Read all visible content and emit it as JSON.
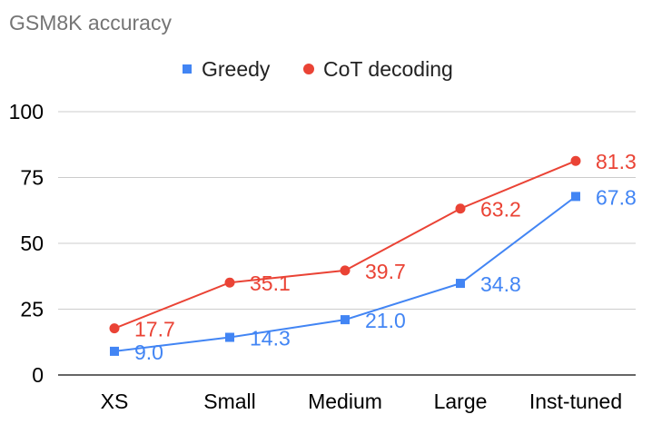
{
  "chart_data": {
    "type": "line",
    "title": "GSM8K accuracy",
    "categories": [
      "XS",
      "Small",
      "Medium",
      "Large",
      "Inst-tuned"
    ],
    "series": [
      {
        "name": "Greedy",
        "values": [
          9.0,
          14.3,
          21.0,
          34.8,
          67.8
        ],
        "color": "#4285f4",
        "marker": "square"
      },
      {
        "name": "CoT decoding",
        "values": [
          17.7,
          35.1,
          39.7,
          63.2,
          81.3
        ],
        "color": "#ea4335",
        "marker": "circle"
      }
    ],
    "yticks": [
      "0",
      "25",
      "50",
      "75",
      "100"
    ],
    "ylim": [
      0,
      100
    ],
    "grid": true,
    "legend": "top-center"
  }
}
